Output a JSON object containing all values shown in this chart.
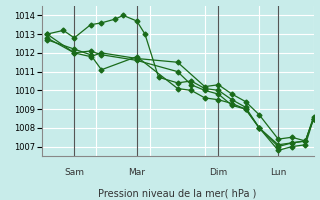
{
  "background_color": "#c8ecea",
  "grid_color": "#ffffff",
  "line_color": "#1a6b1a",
  "marker_color": "#1a6b1a",
  "xlabel": "Pression niveau de la mer( hPa )",
  "ylim": [
    1006.5,
    1014.5
  ],
  "yticks": [
    1007,
    1008,
    1009,
    1010,
    1011,
    1012,
    1013,
    1014
  ],
  "vlines_x": [
    0.12,
    0.35,
    0.65,
    0.87
  ],
  "vlines_labels": [
    "Sam",
    "Mar",
    "Dim",
    "Lun"
  ],
  "series": [
    {
      "x": [
        0.02,
        0.08,
        0.12,
        0.18,
        0.22,
        0.27,
        0.3,
        0.35,
        0.38,
        0.43,
        0.5,
        0.55,
        0.6,
        0.65,
        0.7,
        0.75,
        0.8,
        0.87,
        0.92,
        0.97,
        1.0
      ],
      "y": [
        1013.0,
        1013.2,
        1012.8,
        1013.5,
        1013.6,
        1013.8,
        1014.0,
        1013.7,
        1013.0,
        1010.7,
        1010.4,
        1010.5,
        1010.1,
        1010.0,
        1009.5,
        1009.1,
        1008.0,
        1007.1,
        1007.2,
        1007.3,
        1008.6
      ]
    },
    {
      "x": [
        0.02,
        0.12,
        0.18,
        0.22,
        0.35,
        0.5,
        0.55,
        0.6,
        0.65,
        0.7,
        0.75,
        0.8,
        0.87,
        0.92,
        0.97,
        1.0
      ],
      "y": [
        1012.7,
        1012.2,
        1011.9,
        1011.1,
        1011.8,
        1010.1,
        1010.0,
        1009.6,
        1009.5,
        1009.3,
        1009.0,
        1008.0,
        1007.0,
        1007.2,
        1007.3,
        1008.5
      ]
    },
    {
      "x": [
        0.02,
        0.12,
        0.18,
        0.22,
        0.35,
        0.5,
        0.6,
        0.65,
        0.7,
        0.75,
        0.8,
        0.87,
        0.92,
        0.97,
        1.0
      ],
      "y": [
        1012.8,
        1012.0,
        1011.8,
        1012.0,
        1011.7,
        1011.5,
        1010.2,
        1010.3,
        1009.8,
        1009.4,
        1008.7,
        1007.4,
        1007.5,
        1007.3,
        1008.5
      ]
    },
    {
      "x": [
        0.02,
        0.12,
        0.18,
        0.22,
        0.35,
        0.5,
        0.55,
        0.6,
        0.65,
        0.7,
        0.75,
        0.8,
        0.87,
        0.92,
        0.97,
        1.0
      ],
      "y": [
        1013.0,
        1012.0,
        1012.1,
        1011.9,
        1011.6,
        1011.0,
        1010.3,
        1010.0,
        1009.8,
        1009.2,
        1009.0,
        1008.0,
        1006.8,
        1007.0,
        1007.1,
        1008.5
      ]
    }
  ]
}
